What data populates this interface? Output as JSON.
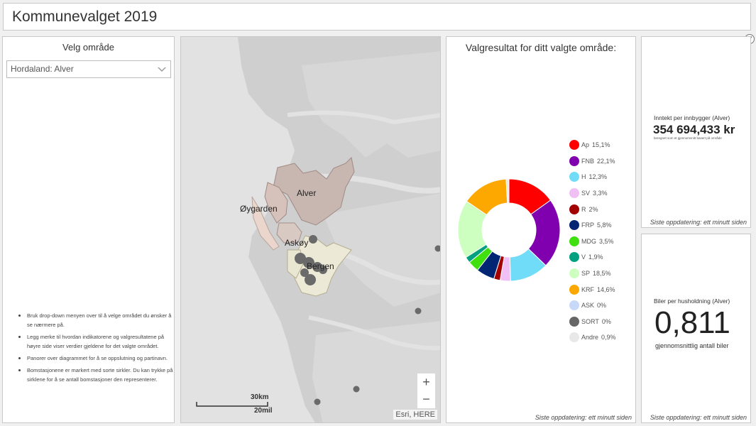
{
  "header": {
    "title": "Kommunevalget 2019"
  },
  "left": {
    "title": "Velg område",
    "select_value": "Hordaland: Alver",
    "instructions": [
      "Bruk drop-down menyen over til å velge området du ønsker å se nærmere på.",
      "Legg merke til hvordan indikatorene og valgresultatene på høyre side viser verdier gjeldene for det valgte området.",
      "Panorer over diagrammet for å se oppslutning og partinavn.",
      "Bomstasjonene er markert med sorte sirkler. Du kan trykke på sirklene for å se antall bomstasjoner den representerer."
    ]
  },
  "map": {
    "labels": {
      "alver": "Alver",
      "oygarden": "Øygarden",
      "askoy": "Askøy",
      "bergen": "Bergen"
    },
    "zoom_in": "+",
    "zoom_out": "−",
    "scale_km": "30km",
    "scale_mi": "20mil",
    "attribution": "Esri, HERE"
  },
  "result": {
    "title": "Valgresultat for ditt valgte område:",
    "footer": "Siste oppdatering: ett minutt siden"
  },
  "chart_data": {
    "type": "pie",
    "donut": true,
    "labels": [
      "Ap",
      "FNB",
      "H",
      "SV",
      "R",
      "FRP",
      "MDG",
      "V",
      "SP",
      "KRF",
      "ASK",
      "SORT",
      "Andre"
    ],
    "value_labels": [
      "15,1%",
      "22,1%",
      "12,3%",
      "3,3%",
      "2%",
      "5,8%",
      "3,5%",
      "1,9%",
      "18,5%",
      "14,6%",
      "0%",
      "0%",
      "0,9%"
    ],
    "values": [
      15.1,
      22.1,
      12.3,
      3.3,
      2.0,
      5.8,
      3.5,
      1.9,
      18.5,
      14.6,
      0,
      0,
      0.9
    ],
    "colors": [
      "#ff0000",
      "#8000b0",
      "#70dcf8",
      "#f0c0f5",
      "#a30000",
      "#002573",
      "#40e010",
      "#00a080",
      "#cdffc0",
      "#fda800",
      "#c8d8f8",
      "#666666",
      "#e8e8e8"
    ]
  },
  "income": {
    "label": "Inntekt per innbygger (Alver)",
    "value": "354 694,433 kr",
    "sublabel": "beregnet som et gjennomsnitt basert på område",
    "footer": "Siste oppdatering: ett minutt siden"
  },
  "cars": {
    "label": "Biler per husholdning (Alver)",
    "value": "0,811",
    "sublabel": "gjennomsnittlig antall biler",
    "footer": "Siste oppdatering: ett minutt siden"
  }
}
